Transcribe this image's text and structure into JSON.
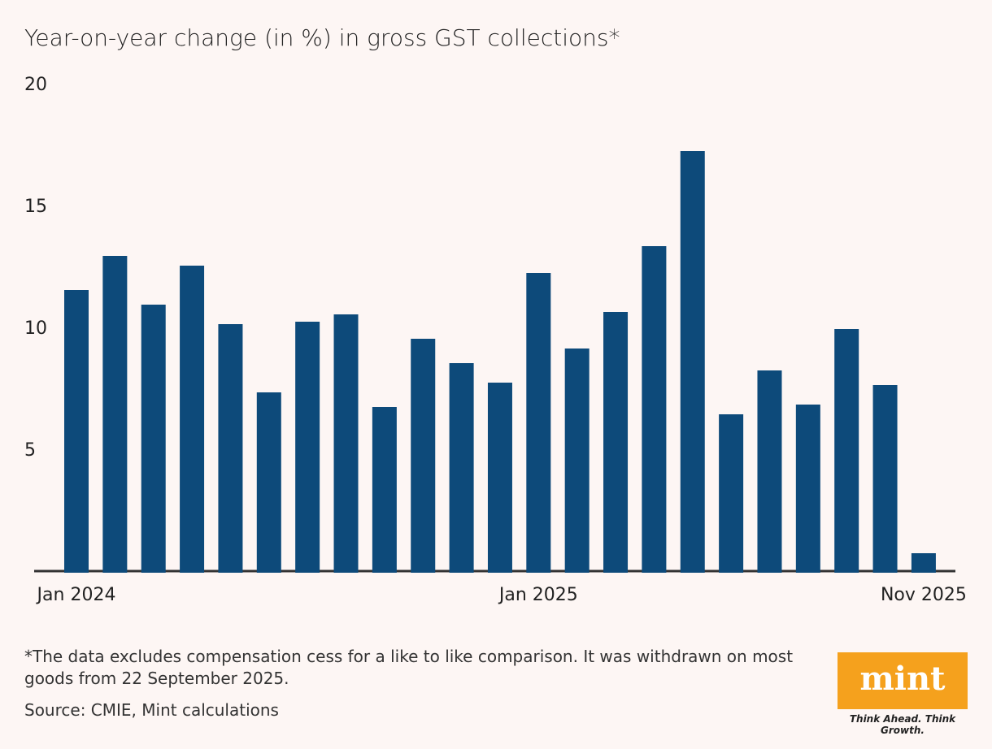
{
  "chart_data": {
    "type": "bar",
    "title": "Year-on-year change (in %) in gross GST collections*",
    "note": "*The data excludes compensation cess for a like to like comparison. It was withdrawn on most goods from 22 September 2025.",
    "source": "Source: CMIE, Mint calculations",
    "categories": [
      "Jan 2024",
      null,
      null,
      null,
      null,
      null,
      null,
      null,
      null,
      null,
      null,
      null,
      "Jan 2025",
      null,
      null,
      null,
      null,
      null,
      null,
      null,
      null,
      null,
      "Nov 2025"
    ],
    "values": [
      11.6,
      13.0,
      11.0,
      12.6,
      10.2,
      7.4,
      10.3,
      10.6,
      6.8,
      9.6,
      8.6,
      7.8,
      12.3,
      9.2,
      10.7,
      13.4,
      17.3,
      6.5,
      8.3,
      6.9,
      10.0,
      7.7,
      0.8
    ],
    "color": "#0d4a7a",
    "ylim": [
      0,
      20
    ],
    "yticks": [
      5,
      10,
      15,
      20
    ],
    "grid": false
  },
  "logo": {
    "name": "mint",
    "tagline": "Think Ahead. Think Growth."
  }
}
